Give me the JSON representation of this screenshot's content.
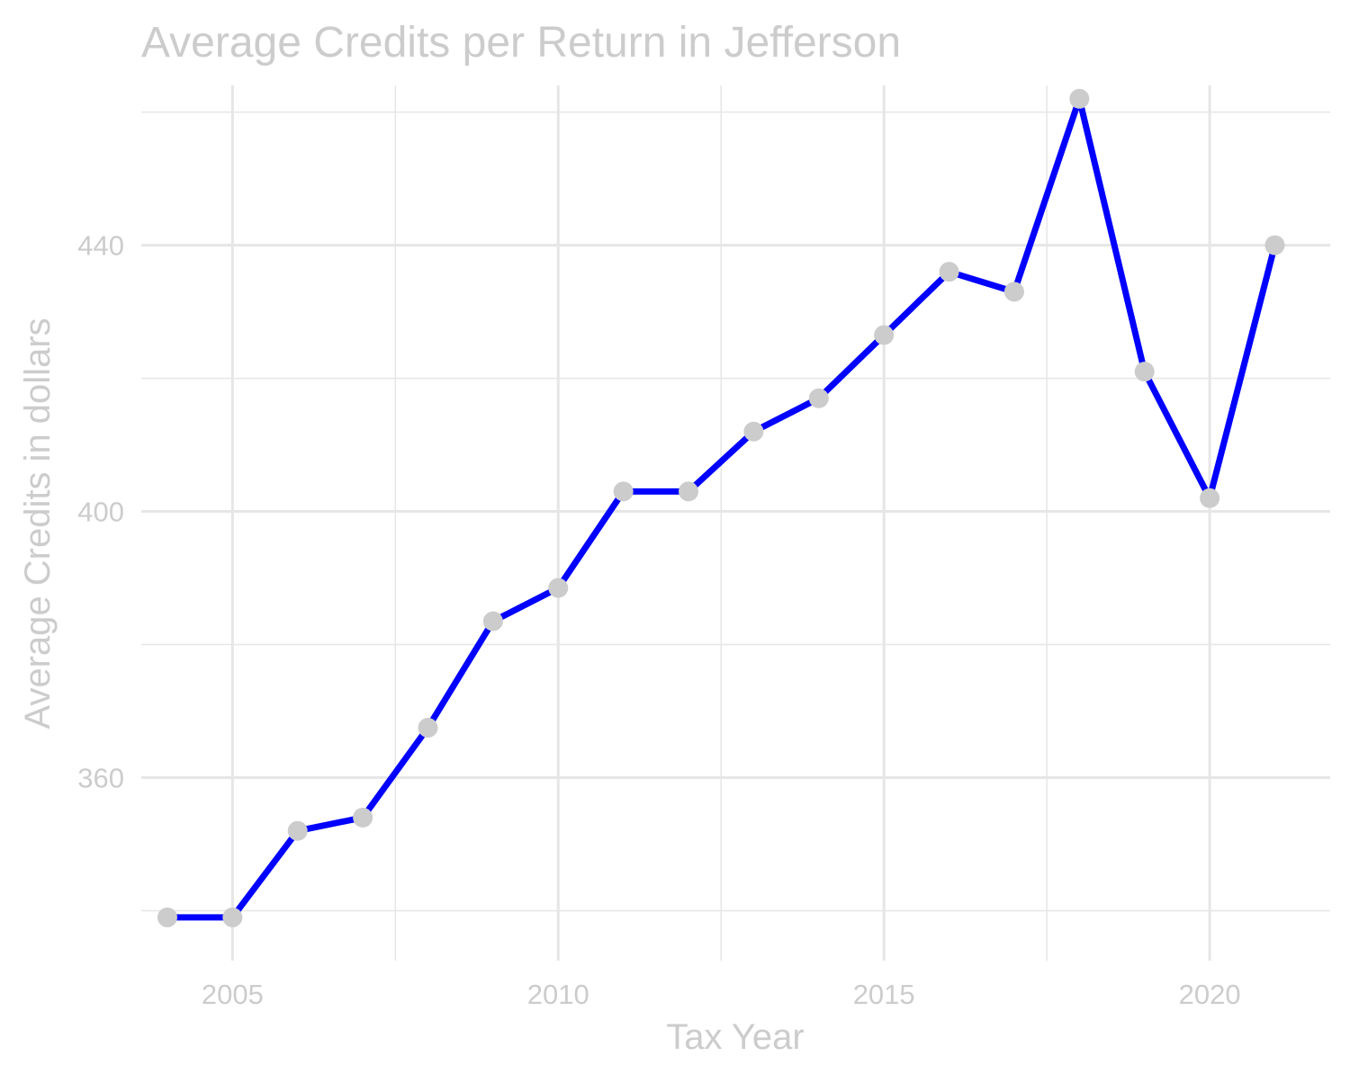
{
  "chart_data": {
    "type": "line",
    "title": "Average Credits per Return in Jefferson",
    "xlabel": "Tax Year",
    "ylabel": "Average Credits in dollars",
    "x": [
      2004,
      2005,
      2006,
      2007,
      2008,
      2009,
      2010,
      2011,
      2012,
      2013,
      2014,
      2015,
      2016,
      2017,
      2018,
      2019,
      2020,
      2021
    ],
    "series": [
      {
        "values": [
          339,
          339,
          352,
          354,
          367.5,
          383.5,
          388.5,
          403,
          403,
          412,
          417,
          426.5,
          436,
          433,
          462,
          421,
          402,
          440
        ],
        "line_color": "#0000ff",
        "marker_color": "#cccccc"
      }
    ],
    "xlim": [
      2003.6,
      2021.85
    ],
    "ylim": [
      332.5,
      464
    ],
    "x_ticks": [
      2005,
      2010,
      2015,
      2020
    ],
    "x_minor_ticks": [
      2007.5,
      2012.5,
      2017.5
    ],
    "y_ticks": [
      360,
      400,
      440
    ],
    "y_minor_ticks": [
      340,
      380,
      420,
      460
    ],
    "grid": true,
    "text_color": "#cccccc",
    "grid_color": "#e6e6e6"
  }
}
